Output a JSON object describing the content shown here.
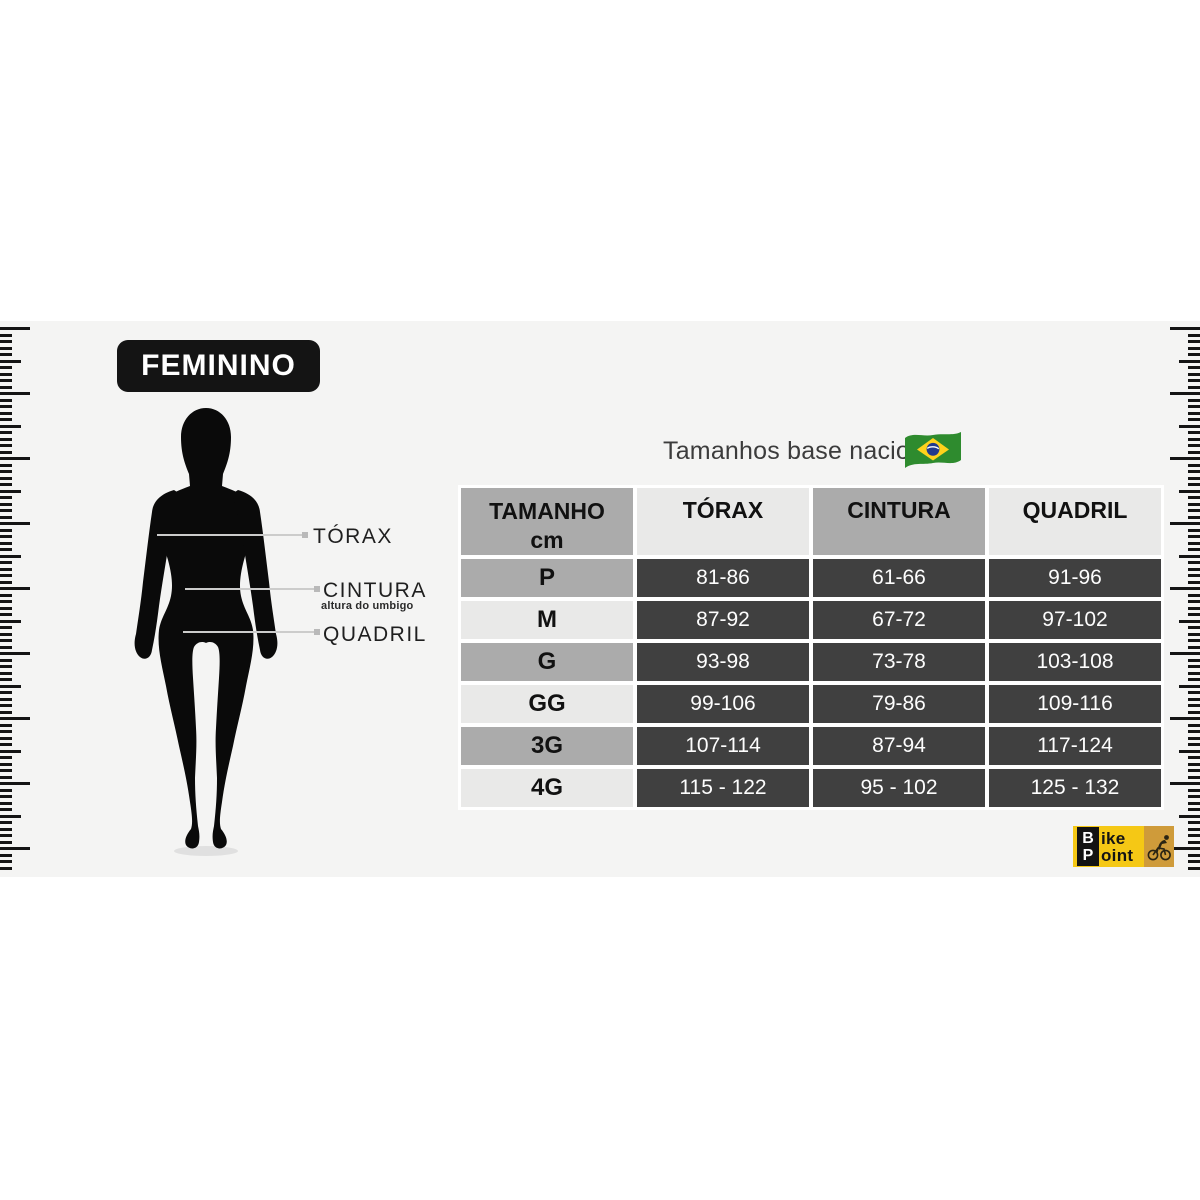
{
  "badge": {
    "label": "FEMININO"
  },
  "figure": {
    "torax_label": "TÓRAX",
    "cintura_label": "CINTURA",
    "cintura_sublabel": "altura do umbigo",
    "quadril_label": "QUADRIL"
  },
  "table": {
    "title": "Tamanhos base nacional",
    "flag_icon": "brazil-flag",
    "header": {
      "col1_line1": "TAMANHO",
      "col1_line2": "cm",
      "col2": "TÓRAX",
      "col3": "CINTURA",
      "col4": "QUADRIL"
    },
    "rows": [
      {
        "size": "P",
        "torax": "81-86",
        "cintura": "61-66",
        "quadril": "91-96"
      },
      {
        "size": "M",
        "torax": "87-92",
        "cintura": "67-72",
        "quadril": "97-102"
      },
      {
        "size": "G",
        "torax": "93-98",
        "cintura": "73-78",
        "quadril": "103-108"
      },
      {
        "size": "GG",
        "torax": "99-106",
        "cintura": "79-86",
        "quadril": "109-116"
      },
      {
        "size": "3G",
        "torax": "107-114",
        "cintura": "87-94",
        "quadril": "117-124"
      },
      {
        "size": "4G",
        "torax": "115 - 122",
        "cintura": "95 - 102",
        "quadril": "125 - 132"
      }
    ]
  },
  "logo": {
    "initial1": "B",
    "rest1": "ike",
    "initial2": "P",
    "rest2": "oint",
    "rider_icon": "cyclist"
  },
  "colors": {
    "band_bg": "#f4f4f3",
    "cell_dark": "#404040",
    "cell_gray": "#ababab",
    "cell_light": "#e9e9e8",
    "badge_bg": "#141414",
    "logo_yellow": "#f5c815",
    "logo_orange": "#cf9b3a",
    "flag_green": "#2e8b2e",
    "flag_yellow": "#ffd21c",
    "flag_blue": "#223a8c"
  }
}
